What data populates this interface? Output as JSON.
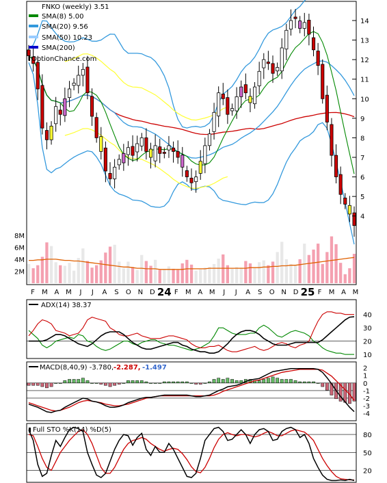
{
  "colors": {
    "up_candle": "#ffffff",
    "down_candle": "#cc0000",
    "gap_up": "#ffff33",
    "gap_down": "#cc66cc",
    "sma8": "#008800",
    "sma20": "#3399dd",
    "sma50": "#99ccff",
    "sma200": "#0000cc",
    "bollinger": "#3399dd",
    "sma50_price_line": "#cc0000",
    "envelope": "#ffff33",
    "volume_up": "#e8e8e8",
    "volume_down": "#f4a0b0",
    "volume_avg": "#e06000",
    "adx": "#000000",
    "plus_di": "#008800",
    "minus_di": "#cc0000",
    "macd": "#000000",
    "signal": "#cc0000",
    "hist_pos": "#66bb66",
    "hist_neg": "#cc6677",
    "stoch_k": "#000000",
    "stoch_d": "#cc0000",
    "macd_value1": "#cc0000",
    "macd_value2": "#3366cc"
  },
  "legend": {
    "ticker": "FNKO (weekly) 3.51",
    "sma8": "SMA(8) 5.00",
    "sma20": "SMA(20) 9.56",
    "sma50": "SMA(50) 10.23",
    "sma200": "SMA(200)",
    "source": "OptionChance.com"
  },
  "adx_label": "ADX(14) 38.37",
  "macd_label": {
    "text": "MACD(8,40,9) -3.780,",
    "v1": "-2.287,",
    "v2": "-1.497"
  },
  "stoch_label": "Full STO %K(14) %D(5)",
  "chart_data": [
    {
      "type": "candlestick",
      "title": "FNKO (weekly) 3.51",
      "x_tick_labels": [
        "F",
        "M",
        "A",
        "M",
        "J",
        "J",
        "A",
        "S",
        "O",
        "N",
        "D",
        "24",
        "F",
        "M",
        "A",
        "M",
        "J",
        "J",
        "A",
        "S",
        "O",
        "N",
        "D",
        "25",
        "F",
        "M",
        "A",
        "M"
      ],
      "y_tick_labels": [
        "4",
        "5",
        "6",
        "7",
        "8",
        "9",
        "10",
        "11",
        "12",
        "13",
        "14"
      ],
      "ylim": [
        3.5,
        14.7
      ],
      "close": [
        12.2,
        11.8,
        10.5,
        8.5,
        7.9,
        8.6,
        9.6,
        9.2,
        10.0,
        10.5,
        10.8,
        11.2,
        11.5,
        10.3,
        9.1,
        8.0,
        7.3,
        6.3,
        5.9,
        6.5,
        6.9,
        7.2,
        7.5,
        7.1,
        7.7,
        8.0,
        7.3,
        7.0,
        7.6,
        7.2,
        7.2,
        7.6,
        7.3,
        7.0,
        6.5,
        6.0,
        5.7,
        6.0,
        6.8,
        7.6,
        8.2,
        9.3,
        10.3,
        10.0,
        9.2,
        9.5,
        10.1,
        10.6,
        10.3,
        9.8,
        10.6,
        11.4,
        12.0,
        11.8,
        11.3,
        11.6,
        12.6,
        13.5,
        14.0,
        14.1,
        13.6,
        13.9,
        13.3,
        12.5,
        11.7,
        10.0,
        8.8,
        7.1,
        6.0,
        5.1,
        4.6,
        4.1,
        3.51
      ],
      "sma8_last": 5.0,
      "sma20_last": 9.56,
      "sma50_last": 10.23
    },
    {
      "type": "bar",
      "title": "Volume",
      "y_tick_labels": [
        "2M",
        "4M",
        "6M",
        "8M"
      ],
      "ylim": [
        0,
        9
      ],
      "values_millions": [
        3.2,
        2.5,
        3.0,
        4.4,
        6.8,
        6.2,
        3.5,
        3.0,
        2.9,
        3.4,
        2.1,
        4.2,
        5.8,
        3.7,
        2.6,
        3.0,
        3.8,
        5.1,
        6.1,
        6.4,
        3.6,
        2.5,
        3.6,
        2.7,
        2.2,
        4.7,
        3.7,
        2.9,
        3.9,
        2.2,
        2.3,
        2.8,
        2.4,
        2.2,
        3.3,
        3.9,
        3.1,
        2.1,
        2.3,
        2.6,
        2.7,
        3.2,
        4.1,
        4.8,
        3.0,
        2.4,
        2.7,
        2.6,
        3.7,
        3.3,
        2.5,
        3.5,
        3.8,
        3.0,
        3.6,
        5.2,
        6.9,
        4.0,
        3.2,
        3.0,
        4.0,
        6.6,
        4.7,
        5.6,
        6.6,
        3.2,
        5.2,
        7.8,
        6.5,
        3.4,
        1.5,
        2.5,
        4.9
      ],
      "average_line_millions": [
        3.8,
        3.8,
        3.9,
        3.9,
        4.0,
        4.0,
        4.0,
        3.9,
        3.8,
        3.8,
        3.7,
        3.7,
        3.6,
        3.5,
        3.4,
        3.3,
        3.2,
        3.1,
        3.0,
        2.9,
        2.8,
        2.7,
        2.7,
        2.6,
        2.5,
        2.5,
        2.4,
        2.4,
        2.4,
        2.3,
        2.3,
        2.3,
        2.3,
        2.3,
        2.3,
        2.4,
        2.4,
        2.4,
        2.4,
        2.4,
        2.5,
        2.5,
        2.5,
        2.5,
        2.5,
        2.5,
        2.5,
        2.5,
        2.5,
        2.6,
        2.6,
        2.6,
        2.7,
        2.7,
        2.8,
        2.8,
        2.9,
        2.9,
        3.0,
        3.0,
        3.1,
        3.2,
        3.3,
        3.4,
        3.5,
        3.6,
        3.7,
        3.8,
        3.9,
        4.0,
        4.1,
        4.2,
        4.3
      ]
    },
    {
      "type": "line",
      "title": "ADX(14) 38.37",
      "y_tick_labels": [
        "10",
        "20",
        "30",
        "40"
      ],
      "ylim": [
        8,
        45
      ],
      "series": [
        {
          "name": "ADX",
          "values": [
            20,
            20,
            20,
            20,
            21,
            23,
            25,
            25,
            24,
            22,
            20,
            18,
            17,
            16,
            18,
            21,
            24,
            26,
            27,
            27,
            27,
            25,
            22,
            19,
            17,
            15,
            14,
            14,
            15,
            16,
            17,
            18,
            19,
            19,
            17,
            16,
            14,
            13,
            12,
            12,
            11,
            11,
            12,
            15,
            18,
            22,
            25,
            27,
            28,
            28,
            27,
            25,
            22,
            20,
            18,
            17,
            17,
            17,
            18,
            19,
            19,
            19,
            19,
            19,
            19,
            21,
            24,
            27,
            30,
            33,
            36,
            38,
            38.37
          ]
        },
        {
          "name": "+DI",
          "values": [
            28,
            25,
            22,
            17,
            15,
            17,
            20,
            21,
            22,
            23,
            22,
            25,
            24,
            20,
            19,
            16,
            14,
            13,
            14,
            16,
            18,
            20,
            20,
            18,
            17,
            19,
            20,
            21,
            21,
            19,
            18,
            17,
            17,
            16,
            15,
            14,
            13,
            14,
            15,
            17,
            19,
            24,
            30,
            30,
            28,
            26,
            25,
            25,
            25,
            26,
            26,
            30,
            32,
            30,
            27,
            24,
            23,
            25,
            27,
            28,
            27,
            26,
            24,
            20,
            18,
            15,
            13,
            12,
            11,
            11,
            10,
            10,
            10
          ]
        },
        {
          "name": "-DI",
          "values": [
            24,
            28,
            33,
            36,
            35,
            33,
            28,
            27,
            26,
            24,
            25,
            26,
            30,
            36,
            38,
            37,
            36,
            35,
            30,
            28,
            25,
            24,
            24,
            25,
            26,
            24,
            23,
            22,
            22,
            22,
            23,
            24,
            24,
            23,
            22,
            21,
            18,
            16,
            15,
            15,
            16,
            16,
            17,
            15,
            13,
            12,
            12,
            13,
            14,
            15,
            16,
            14,
            13,
            14,
            16,
            18,
            19,
            18,
            16,
            15,
            17,
            18,
            20,
            28,
            35,
            40,
            42,
            42,
            41,
            41,
            40,
            40,
            40
          ]
        }
      ]
    },
    {
      "type": "bar+line",
      "title": "MACD(8,40,9) -3.780, -2.287, -1.497",
      "y_tick_labels": [
        "-4",
        "-3",
        "-2",
        "-1",
        "0",
        "1",
        "2"
      ],
      "ylim": [
        -4.8,
        2.6
      ],
      "series": [
        {
          "name": "MACD",
          "values": [
            -2.8,
            -3.0,
            -3.2,
            -3.5,
            -3.8,
            -3.9,
            -3.7,
            -3.6,
            -3.2,
            -2.9,
            -2.6,
            -2.3,
            -2.0,
            -2.1,
            -2.4,
            -2.5,
            -2.7,
            -3.0,
            -3.2,
            -3.2,
            -3.1,
            -2.9,
            -2.6,
            -2.4,
            -2.2,
            -2.0,
            -1.9,
            -1.9,
            -1.8,
            -1.7,
            -1.6,
            -1.6,
            -1.6,
            -1.6,
            -1.6,
            -1.6,
            -1.7,
            -1.8,
            -1.8,
            -1.7,
            -1.6,
            -1.3,
            -1.0,
            -0.8,
            -0.5,
            -0.4,
            -0.3,
            -0.1,
            0.2,
            0.4,
            0.5,
            0.6,
            0.9,
            1.2,
            1.5,
            1.6,
            1.7,
            1.8,
            1.9,
            1.9,
            1.9,
            1.9,
            1.9,
            1.9,
            1.8,
            1.4,
            0.7,
            -0.1,
            -1.0,
            -1.8,
            -2.5,
            -3.2,
            -3.78
          ]
        },
        {
          "name": "Signal",
          "values": [
            -2.6,
            -2.8,
            -3.0,
            -3.2,
            -3.4,
            -3.6,
            -3.7,
            -3.6,
            -3.4,
            -3.2,
            -2.9,
            -2.6,
            -2.4,
            -2.3,
            -2.4,
            -2.5,
            -2.6,
            -2.8,
            -2.9,
            -3.0,
            -3.0,
            -2.9,
            -2.8,
            -2.6,
            -2.4,
            -2.2,
            -2.0,
            -1.9,
            -1.8,
            -1.7,
            -1.7,
            -1.7,
            -1.7,
            -1.7,
            -1.7,
            -1.7,
            -1.7,
            -1.7,
            -1.7,
            -1.7,
            -1.7,
            -1.6,
            -1.4,
            -1.1,
            -0.9,
            -0.7,
            -0.5,
            -0.3,
            -0.1,
            0.1,
            0.3,
            0.4,
            0.6,
            0.8,
            1.0,
            1.2,
            1.4,
            1.5,
            1.6,
            1.7,
            1.8,
            1.8,
            1.8,
            1.8,
            1.8,
            1.7,
            1.3,
            0.9,
            0.3,
            -0.3,
            -0.9,
            -1.5,
            -2.287
          ]
        },
        {
          "name": "Histogram",
          "values": [
            -0.2,
            -0.2,
            -0.2,
            -0.3,
            -0.4,
            -0.3,
            0.0,
            0.0,
            0.2,
            0.3,
            0.3,
            0.3,
            0.4,
            0.2,
            0.0,
            0.0,
            -0.1,
            -0.2,
            -0.3,
            -0.2,
            -0.1,
            0.0,
            0.2,
            0.2,
            0.2,
            0.2,
            0.1,
            0.0,
            0.0,
            0.0,
            0.1,
            0.1,
            0.1,
            0.1,
            0.1,
            0.1,
            0.0,
            -0.1,
            -0.1,
            0.0,
            0.1,
            0.3,
            0.4,
            0.3,
            0.4,
            0.3,
            0.2,
            0.2,
            0.3,
            0.3,
            0.2,
            0.2,
            0.3,
            0.4,
            0.5,
            0.4,
            0.3,
            0.3,
            0.3,
            0.2,
            0.1,
            0.1,
            0.1,
            0.1,
            0.0,
            -0.3,
            -0.6,
            -1.0,
            -1.3,
            -1.5,
            -1.6,
            -1.7,
            -1.497
          ]
        }
      ]
    },
    {
      "type": "line",
      "title": "Full STO %K(14) %D(5)",
      "y_tick_labels": [
        "20",
        "50",
        "80"
      ],
      "ylim": [
        0,
        95
      ],
      "series": [
        {
          "name": "%K",
          "values": [
            88,
            70,
            30,
            10,
            15,
            45,
            70,
            60,
            75,
            88,
            92,
            90,
            85,
            50,
            30,
            12,
            8,
            15,
            35,
            55,
            70,
            80,
            78,
            62,
            75,
            82,
            55,
            45,
            60,
            50,
            50,
            65,
            55,
            40,
            25,
            10,
            8,
            15,
            40,
            70,
            80,
            90,
            92,
            85,
            70,
            72,
            80,
            88,
            80,
            65,
            80,
            88,
            90,
            85,
            70,
            72,
            85,
            90,
            92,
            88,
            75,
            80,
            65,
            40,
            25,
            12,
            5,
            3,
            3,
            4,
            3,
            5,
            3
          ]
        },
        {
          "name": "%D",
          "values": [
            80,
            78,
            60,
            40,
            25,
            20,
            35,
            50,
            60,
            70,
            78,
            85,
            88,
            80,
            65,
            45,
            25,
            15,
            15,
            25,
            40,
            55,
            65,
            70,
            72,
            75,
            72,
            65,
            60,
            55,
            52,
            55,
            57,
            55,
            48,
            38,
            26,
            18,
            16,
            25,
            40,
            58,
            72,
            80,
            83,
            80,
            78,
            80,
            80,
            78,
            76,
            78,
            82,
            85,
            82,
            78,
            78,
            82,
            86,
            88,
            86,
            84,
            78,
            70,
            55,
            40,
            28,
            18,
            10,
            6,
            5,
            4,
            4
          ]
        }
      ]
    }
  ]
}
